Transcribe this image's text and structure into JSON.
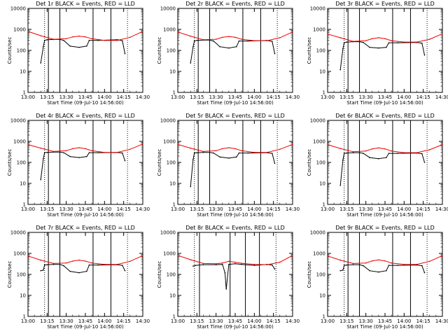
{
  "chart_data": [
    {
      "type": "line",
      "title": "Det 1r BLACK = Events, RED = LLD",
      "xlabel": "Start Time (09-Jul-10 14:56:00)",
      "ylabel": "Counts/sec",
      "x_ticks": [
        "13:00",
        "13:15",
        "13:30",
        "13:45",
        "14:00",
        "14:15",
        "14:30"
      ],
      "y_ticks": [
        "1",
        "10",
        "100",
        "1000",
        "10000"
      ],
      "ylim": [
        1,
        10000
      ],
      "log_y": true,
      "solid_markers": [
        "13:16",
        "13:25",
        "13:51",
        "14:05"
      ],
      "dotted_markers": [
        "13:13",
        "14:18"
      ],
      "series": [
        {
          "name": "BLACK",
          "color": "#000000",
          "x": [
            "13:10",
            "13:12",
            "13:13",
            "13:15",
            "13:20",
            "13:25",
            "13:28",
            "13:33",
            "13:40",
            "13:46",
            "13:48",
            "13:55",
            "14:10",
            "14:14",
            "14:16"
          ],
          "values": [
            25,
            150,
            300,
            320,
            330,
            330,
            300,
            160,
            140,
            160,
            300,
            300,
            320,
            290,
            70
          ]
        },
        {
          "name": "RED",
          "color": "#ee0000",
          "x": [
            "13:00",
            "13:10",
            "13:20",
            "13:30",
            "13:35",
            "13:40",
            "13:45",
            "13:50",
            "14:00",
            "14:10",
            "14:20",
            "14:30"
          ],
          "values": [
            800,
            500,
            340,
            360,
            440,
            480,
            440,
            360,
            300,
            300,
            420,
            800
          ]
        }
      ]
    },
    {
      "type": "line",
      "title": "Det 2r BLACK = Events, RED = LLD",
      "xlabel": "Start Time (09-Jul-10 14:56:00)",
      "ylabel": "Counts/sec",
      "x_ticks": [
        "13:00",
        "13:15",
        "13:30",
        "13:45",
        "14:00",
        "14:15",
        "14:30"
      ],
      "y_ticks": [
        "1",
        "10",
        "100",
        "1000",
        "10000"
      ],
      "ylim": [
        1,
        10000
      ],
      "log_y": true,
      "solid_markers": [
        "13:16",
        "13:25",
        "13:51",
        "14:05"
      ],
      "dotted_markers": [
        "13:13",
        "14:18"
      ],
      "series": [
        {
          "name": "BLACK",
          "color": "#000000",
          "x": [
            "13:10",
            "13:12",
            "13:13",
            "13:15",
            "13:20",
            "13:25",
            "13:28",
            "13:33",
            "13:40",
            "13:46",
            "13:48",
            "13:55",
            "14:10",
            "14:14",
            "14:16"
          ],
          "values": [
            25,
            150,
            280,
            300,
            310,
            310,
            280,
            150,
            130,
            150,
            280,
            280,
            300,
            270,
            70
          ]
        },
        {
          "name": "RED",
          "color": "#ee0000",
          "x": [
            "13:00",
            "13:10",
            "13:20",
            "13:30",
            "13:35",
            "13:40",
            "13:45",
            "13:50",
            "14:00",
            "14:10",
            "14:20",
            "14:30"
          ],
          "values": [
            750,
            480,
            320,
            340,
            420,
            460,
            420,
            340,
            290,
            290,
            400,
            750
          ]
        }
      ]
    },
    {
      "type": "line",
      "title": "Det 3r BLACK = Events, RED = LLD",
      "xlabel": "Start Time (09-Jul-10 14:56:00)",
      "ylabel": "Counts/sec",
      "x_ticks": [
        "13:00",
        "13:15",
        "13:30",
        "13:45",
        "14:00",
        "14:15",
        "14:30"
      ],
      "y_ticks": [
        "1",
        "10",
        "100",
        "1000",
        "10000"
      ],
      "ylim": [
        1,
        10000
      ],
      "log_y": true,
      "solid_markers": [
        "13:16",
        "13:25",
        "13:51",
        "14:05"
      ],
      "dotted_markers": [
        "13:13",
        "14:18"
      ],
      "series": [
        {
          "name": "BLACK",
          "color": "#000000",
          "x": [
            "13:10",
            "13:12",
            "13:13",
            "13:15",
            "13:20",
            "13:25",
            "13:28",
            "13:33",
            "13:40",
            "13:46",
            "13:48",
            "13:55",
            "14:10",
            "14:14",
            "14:16"
          ],
          "values": [
            12,
            120,
            230,
            250,
            260,
            260,
            240,
            140,
            130,
            140,
            230,
            230,
            240,
            220,
            60
          ]
        },
        {
          "name": "RED",
          "color": "#ee0000",
          "x": [
            "13:00",
            "13:10",
            "13:20",
            "13:30",
            "13:35",
            "13:40",
            "13:45",
            "13:50",
            "14:00",
            "14:10",
            "14:20",
            "14:30"
          ],
          "values": [
            600,
            400,
            270,
            290,
            360,
            400,
            360,
            290,
            250,
            250,
            340,
            620
          ]
        }
      ]
    },
    {
      "type": "line",
      "title": "Det 4r BLACK = Events, RED = LLD",
      "xlabel": "Start Time (09-Jul-10 14:56:00)",
      "ylabel": "Counts/sec",
      "x_ticks": [
        "13:00",
        "13:15",
        "13:30",
        "13:45",
        "14:00",
        "14:15",
        "14:30"
      ],
      "y_ticks": [
        "1",
        "10",
        "100",
        "1000",
        "10000"
      ],
      "ylim": [
        1,
        10000
      ],
      "log_y": true,
      "solid_markers": [
        "13:16",
        "13:25",
        "13:51",
        "14:05"
      ],
      "dotted_markers": [
        "13:13",
        "14:18"
      ],
      "series": [
        {
          "name": "BLACK",
          "color": "#000000",
          "x": [
            "13:10",
            "13:12",
            "13:13",
            "13:15",
            "13:20",
            "13:25",
            "13:28",
            "13:33",
            "13:40",
            "13:46",
            "13:48",
            "13:55",
            "14:10",
            "14:14",
            "14:16"
          ],
          "values": [
            15,
            150,
            290,
            300,
            310,
            310,
            290,
            190,
            170,
            190,
            290,
            290,
            300,
            280,
            120
          ]
        },
        {
          "name": "RED",
          "color": "#ee0000",
          "x": [
            "13:00",
            "13:10",
            "13:20",
            "13:30",
            "13:35",
            "13:40",
            "13:45",
            "13:50",
            "14:00",
            "14:10",
            "14:20",
            "14:30"
          ],
          "values": [
            700,
            480,
            330,
            360,
            450,
            500,
            450,
            360,
            300,
            300,
            420,
            750
          ]
        }
      ]
    },
    {
      "type": "line",
      "title": "Det 5r BLACK = Events, RED = LLD",
      "xlabel": "Start Time (09-Jul-10 14:56:00)",
      "ylabel": "Counts/sec",
      "x_ticks": [
        "13:00",
        "13:15",
        "13:30",
        "13:45",
        "14:00",
        "14:15",
        "14:30"
      ],
      "y_ticks": [
        "1",
        "10",
        "100",
        "1000",
        "10000"
      ],
      "ylim": [
        1,
        10000
      ],
      "log_y": true,
      "solid_markers": [
        "13:16",
        "13:25",
        "13:51",
        "14:05"
      ],
      "dotted_markers": [
        "13:13",
        "14:18"
      ],
      "series": [
        {
          "name": "BLACK",
          "color": "#000000",
          "x": [
            "13:10",
            "13:12",
            "13:13",
            "13:15",
            "13:20",
            "13:25",
            "13:28",
            "13:33",
            "13:40",
            "13:46",
            "13:48",
            "13:55",
            "14:10",
            "14:14",
            "14:16"
          ],
          "values": [
            7,
            140,
            280,
            290,
            300,
            300,
            280,
            180,
            160,
            180,
            280,
            280,
            290,
            270,
            90
          ]
        },
        {
          "name": "RED",
          "color": "#ee0000",
          "x": [
            "13:00",
            "13:10",
            "13:20",
            "13:30",
            "13:35",
            "13:40",
            "13:45",
            "13:50",
            "14:00",
            "14:10",
            "14:20",
            "14:30"
          ],
          "values": [
            720,
            480,
            330,
            360,
            450,
            500,
            450,
            360,
            300,
            300,
            420,
            720
          ]
        }
      ]
    },
    {
      "type": "line",
      "title": "Det 6r BLACK = Events, RED = LLD",
      "xlabel": "Start Time (09-Jul-10 14:56:00)",
      "ylabel": "Counts/sec",
      "x_ticks": [
        "13:00",
        "13:15",
        "13:30",
        "13:45",
        "14:00",
        "14:15",
        "14:30"
      ],
      "y_ticks": [
        "1",
        "10",
        "100",
        "1000",
        "10000"
      ],
      "ylim": [
        1,
        10000
      ],
      "log_y": true,
      "solid_markers": [
        "13:16",
        "13:25",
        "13:51",
        "14:05"
      ],
      "dotted_markers": [
        "13:13",
        "14:18"
      ],
      "series": [
        {
          "name": "BLACK",
          "color": "#000000",
          "x": [
            "13:10",
            "13:12",
            "13:13",
            "13:15",
            "13:20",
            "13:25",
            "13:28",
            "13:33",
            "13:40",
            "13:46",
            "13:48",
            "13:55",
            "14:10",
            "14:14",
            "14:16"
          ],
          "values": [
            8,
            130,
            270,
            280,
            290,
            290,
            270,
            170,
            150,
            170,
            270,
            270,
            280,
            260,
            100
          ]
        },
        {
          "name": "RED",
          "color": "#ee0000",
          "x": [
            "13:00",
            "13:10",
            "13:20",
            "13:30",
            "13:35",
            "13:40",
            "13:45",
            "13:50",
            "14:00",
            "14:10",
            "14:20",
            "14:30"
          ],
          "values": [
            700,
            460,
            320,
            350,
            440,
            490,
            440,
            350,
            290,
            290,
            400,
            700
          ]
        }
      ]
    },
    {
      "type": "line",
      "title": "Det 7r BLACK = Events, RED = LLD",
      "xlabel": "Start Time (09-Jul-10 14:56:00)",
      "ylabel": "Counts/sec",
      "x_ticks": [
        "13:00",
        "13:15",
        "13:30",
        "13:45",
        "14:00",
        "14:15",
        "14:30"
      ],
      "y_ticks": [
        "1",
        "10",
        "100",
        "1000",
        "10000"
      ],
      "ylim": [
        1,
        10000
      ],
      "log_y": true,
      "solid_markers": [
        "13:16",
        "13:25",
        "13:51",
        "14:05"
      ],
      "dotted_markers": [
        "13:13",
        "14:18"
      ],
      "series": [
        {
          "name": "BLACK",
          "color": "#000000",
          "x": [
            "13:10",
            "13:12",
            "13:13",
            "13:15",
            "13:20",
            "13:25",
            "13:28",
            "13:33",
            "13:40",
            "13:46",
            "13:48",
            "13:55",
            "14:10",
            "14:14",
            "14:16"
          ],
          "values": [
            150,
            160,
            280,
            290,
            300,
            300,
            260,
            140,
            120,
            140,
            280,
            280,
            290,
            270,
            150
          ]
        },
        {
          "name": "RED",
          "color": "#ee0000",
          "x": [
            "13:00",
            "13:10",
            "13:20",
            "13:30",
            "13:35",
            "13:40",
            "13:45",
            "13:50",
            "14:00",
            "14:10",
            "14:20",
            "14:30"
          ],
          "values": [
            750,
            480,
            330,
            350,
            430,
            480,
            430,
            350,
            300,
            300,
            420,
            780
          ]
        }
      ]
    },
    {
      "type": "line",
      "title": "Det 8r BLACK = Events, RED = LLD",
      "xlabel": "Start Time (09-Jul-10 14:56:00)",
      "ylabel": "Counts/sec",
      "x_ticks": [
        "13:00",
        "13:15",
        "13:30",
        "13:45",
        "14:00",
        "14:15",
        "14:30"
      ],
      "y_ticks": [
        "1",
        "10",
        "100",
        "1000",
        "10000"
      ],
      "ylim": [
        1,
        10000
      ],
      "log_y": true,
      "solid_markers": [
        "13:17",
        "13:41",
        "13:53",
        "14:04"
      ],
      "dotted_markers": [
        "13:13",
        "14:17"
      ],
      "series": [
        {
          "name": "BLACK",
          "color": "#000000",
          "x": [
            "13:12",
            "13:14",
            "13:20",
            "13:30",
            "13:35",
            "13:37",
            "13:38",
            "13:40",
            "13:45",
            "13:50",
            "14:00",
            "14:10",
            "14:14",
            "14:16"
          ],
          "values": [
            250,
            270,
            290,
            290,
            300,
            120,
            20,
            300,
            320,
            300,
            270,
            300,
            280,
            180
          ]
        },
        {
          "name": "RED",
          "color": "#ee0000",
          "x": [
            "13:00",
            "13:10",
            "13:20",
            "13:30",
            "13:35",
            "13:40",
            "13:45",
            "13:50",
            "14:00",
            "14:10",
            "14:20",
            "14:30"
          ],
          "values": [
            800,
            500,
            330,
            320,
            350,
            420,
            380,
            340,
            300,
            290,
            380,
            800
          ]
        }
      ]
    },
    {
      "type": "line",
      "title": "Det 9r BLACK = Events, RED = LLD",
      "xlabel": "Start Time (09-Jul-10 14:56:00)",
      "ylabel": "Counts/sec",
      "x_ticks": [
        "13:00",
        "13:15",
        "13:30",
        "13:45",
        "14:00",
        "14:15",
        "14:30"
      ],
      "y_ticks": [
        "1",
        "10",
        "100",
        "1000",
        "10000"
      ],
      "ylim": [
        1,
        10000
      ],
      "log_y": true,
      "solid_markers": [
        "13:16",
        "13:25",
        "13:51",
        "14:05"
      ],
      "dotted_markers": [
        "13:13",
        "14:18"
      ],
      "series": [
        {
          "name": "BLACK",
          "color": "#000000",
          "x": [
            "13:10",
            "13:12",
            "13:13",
            "13:15",
            "13:20",
            "13:25",
            "13:28",
            "13:33",
            "13:40",
            "13:46",
            "13:48",
            "13:55",
            "14:10",
            "14:14",
            "14:16"
          ],
          "values": [
            150,
            160,
            270,
            280,
            290,
            290,
            260,
            150,
            130,
            150,
            270,
            270,
            280,
            260,
            120
          ]
        },
        {
          "name": "RED",
          "color": "#ee0000",
          "x": [
            "13:00",
            "13:10",
            "13:20",
            "13:30",
            "13:35",
            "13:40",
            "13:45",
            "13:50",
            "14:00",
            "14:10",
            "14:20",
            "14:30"
          ],
          "values": [
            750,
            480,
            330,
            350,
            440,
            490,
            440,
            350,
            300,
            300,
            420,
            780
          ]
        }
      ]
    }
  ]
}
